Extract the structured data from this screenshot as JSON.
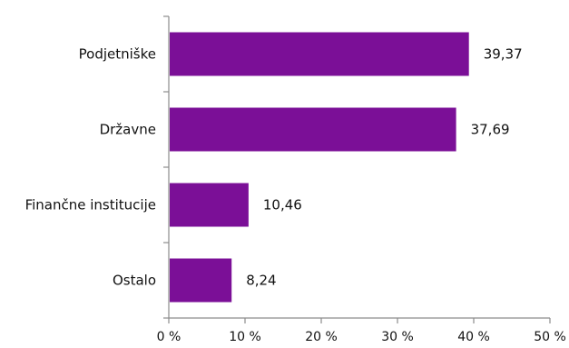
{
  "chart_data": {
    "type": "bar",
    "orientation": "horizontal",
    "categories": [
      "Podjetniške",
      "Državne",
      "Finančne institucije",
      "Ostalo"
    ],
    "values": [
      39.37,
      37.69,
      10.46,
      8.24
    ],
    "value_labels": [
      "39,37",
      "37,69",
      "10,46",
      "8,24"
    ],
    "x_ticks": [
      0,
      10,
      20,
      30,
      40,
      50
    ],
    "x_tick_labels": [
      "0 %",
      "10 %",
      "20 %",
      "30 %",
      "40 %",
      "50 %"
    ],
    "xlim": [
      0,
      50
    ],
    "grid": false,
    "bar_color": "#7b0f97",
    "title": "",
    "xlabel": "",
    "ylabel": ""
  }
}
